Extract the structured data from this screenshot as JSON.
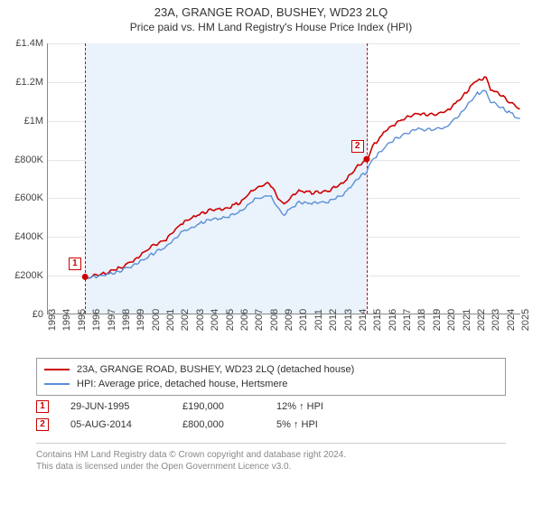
{
  "title": "23A, GRANGE ROAD, BUSHEY, WD23 2LQ",
  "subtitle": "Price paid vs. HM Land Registry's House Price Index (HPI)",
  "chart": {
    "type": "line",
    "background_color": "#ffffff",
    "grid_color": "#e5e5e5",
    "axis_color": "#888888",
    "shade_color": "#eaf2fb",
    "shade_border_color": "#cc0000",
    "x_axis": {
      "min_year": 1993,
      "max_year": 2025,
      "labels": [
        "1993",
        "1994",
        "1995",
        "1996",
        "1997",
        "1998",
        "1999",
        "2000",
        "2001",
        "2002",
        "2003",
        "2004",
        "2005",
        "2006",
        "2007",
        "2008",
        "2009",
        "2010",
        "2011",
        "2012",
        "2013",
        "2014",
        "2015",
        "2016",
        "2017",
        "2018",
        "2019",
        "2020",
        "2021",
        "2022",
        "2023",
        "2024",
        "2025"
      ],
      "label_fontsize": 11,
      "label_rotation": -90
    },
    "y_axis": {
      "min": 0,
      "max": 1400000,
      "tick_step": 200000,
      "labels": [
        "£0",
        "£200K",
        "£400K",
        "£600K",
        "£800K",
        "£1M",
        "£1.2M",
        "£1.4M"
      ],
      "label_fontsize": 11
    },
    "shaded_region": {
      "x_start": 1995.5,
      "x_end": 2014.6
    },
    "series": [
      {
        "id": "price_paid",
        "label": "23A, GRANGE ROAD, BUSHEY, WD23 2LQ (detached house)",
        "color": "#cc0000",
        "line_width": 1.6,
        "data": [
          [
            1995.5,
            190000
          ],
          [
            1996,
            200000
          ],
          [
            1997,
            215000
          ],
          [
            1998,
            245000
          ],
          [
            1999,
            290000
          ],
          [
            2000,
            350000
          ],
          [
            2001,
            390000
          ],
          [
            2002,
            470000
          ],
          [
            2003,
            510000
          ],
          [
            2004,
            540000
          ],
          [
            2005,
            545000
          ],
          [
            2006,
            580000
          ],
          [
            2007,
            650000
          ],
          [
            2008,
            680000
          ],
          [
            2008.7,
            590000
          ],
          [
            2009,
            570000
          ],
          [
            2010,
            640000
          ],
          [
            2011,
            630000
          ],
          [
            2012,
            640000
          ],
          [
            2013,
            680000
          ],
          [
            2014,
            770000
          ],
          [
            2014.6,
            800000
          ],
          [
            2015,
            870000
          ],
          [
            2016,
            960000
          ],
          [
            2017,
            1010000
          ],
          [
            2018,
            1040000
          ],
          [
            2019,
            1035000
          ],
          [
            2020,
            1050000
          ],
          [
            2021,
            1120000
          ],
          [
            2022,
            1210000
          ],
          [
            2022.7,
            1225000
          ],
          [
            2023,
            1170000
          ],
          [
            2024,
            1120000
          ],
          [
            2024.5,
            1090000
          ],
          [
            2025,
            1060000
          ]
        ]
      },
      {
        "id": "hpi",
        "label": "HPI: Average price, detached house, Hertsmere",
        "color": "#5b8fd6",
        "line_width": 1.4,
        "data": [
          [
            1995.5,
            190000
          ],
          [
            1996,
            193000
          ],
          [
            1997,
            205000
          ],
          [
            1998,
            228000
          ],
          [
            1999,
            262000
          ],
          [
            2000,
            310000
          ],
          [
            2001,
            350000
          ],
          [
            2002,
            420000
          ],
          [
            2003,
            460000
          ],
          [
            2004,
            495000
          ],
          [
            2005,
            500000
          ],
          [
            2006,
            530000
          ],
          [
            2007,
            595000
          ],
          [
            2008,
            620000
          ],
          [
            2008.7,
            540000
          ],
          [
            2009,
            520000
          ],
          [
            2010,
            580000
          ],
          [
            2011,
            575000
          ],
          [
            2012,
            585000
          ],
          [
            2013,
            620000
          ],
          [
            2014,
            700000
          ],
          [
            2014.6,
            740000
          ],
          [
            2015,
            800000
          ],
          [
            2016,
            880000
          ],
          [
            2017,
            930000
          ],
          [
            2018,
            960000
          ],
          [
            2019,
            955000
          ],
          [
            2020,
            970000
          ],
          [
            2021,
            1040000
          ],
          [
            2022,
            1140000
          ],
          [
            2022.7,
            1160000
          ],
          [
            2023,
            1105000
          ],
          [
            2024,
            1060000
          ],
          [
            2024.5,
            1035000
          ],
          [
            2025,
            1010000
          ]
        ]
      }
    ],
    "sale_markers": [
      {
        "n": "1",
        "year": 1995.5,
        "value": 190000
      },
      {
        "n": "2",
        "year": 2014.6,
        "value": 800000
      }
    ]
  },
  "legend": {
    "items": [
      {
        "color": "#cc0000",
        "label": "23A, GRANGE ROAD, BUSHEY, WD23 2LQ (detached house)"
      },
      {
        "color": "#5b8fd6",
        "label": "HPI: Average price, detached house, Hertsmere"
      }
    ]
  },
  "sales": [
    {
      "n": "1",
      "date": "29-JUN-1995",
      "price": "£190,000",
      "hpi_delta": "12% ↑ HPI"
    },
    {
      "n": "2",
      "date": "05-AUG-2014",
      "price": "£800,000",
      "hpi_delta": "5% ↑ HPI"
    }
  ],
  "footer": {
    "line1": "Contains HM Land Registry data © Crown copyright and database right 2024.",
    "line2": "This data is licensed under the Open Government Licence v3.0."
  }
}
